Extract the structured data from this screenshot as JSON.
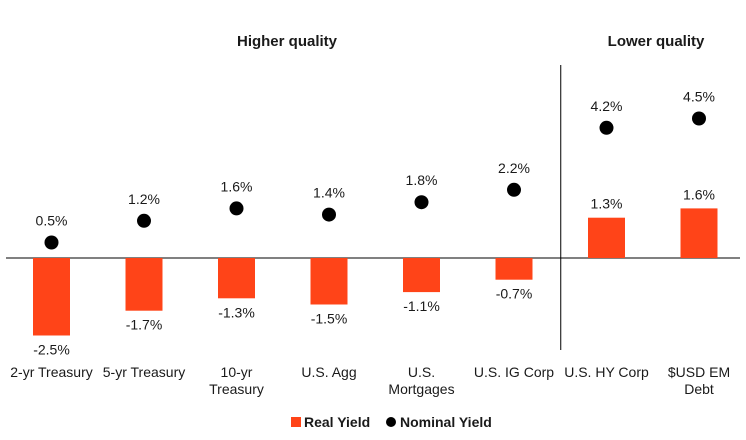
{
  "chart_data": {
    "type": "bar",
    "categories": [
      [
        "2-yr Treasury"
      ],
      [
        "5-yr Treasury"
      ],
      [
        "10-yr",
        "Treasury"
      ],
      [
        "U.S. Agg"
      ],
      [
        "U.S.",
        "Mortgages"
      ],
      [
        "U.S. IG Corp"
      ],
      [
        "U.S. HY Corp"
      ],
      [
        "$USD EM",
        "Debt"
      ]
    ],
    "series": [
      {
        "name": "Real Yield",
        "kind": "bar",
        "color": "#ff4418",
        "values": [
          -2.5,
          -1.7,
          -1.3,
          -1.5,
          -1.1,
          -0.7,
          1.3,
          1.6
        ],
        "labels": [
          "-2.5%",
          "-1.7%",
          "-1.3%",
          "-1.5%",
          "-1.1%",
          "-0.7%",
          "1.3%",
          "1.6%"
        ]
      },
      {
        "name": "Nominal Yield",
        "kind": "dot",
        "color": "#000000",
        "values": [
          0.5,
          1.2,
          1.6,
          1.4,
          1.8,
          2.2,
          4.2,
          4.5
        ],
        "labels": [
          "0.5%",
          "1.2%",
          "1.6%",
          "1.4%",
          "1.8%",
          "2.2%",
          "4.2%",
          "4.5%"
        ]
      }
    ],
    "groups": [
      {
        "title": "Higher quality",
        "categories": [
          0,
          5
        ]
      },
      {
        "title": "Lower quality",
        "categories": [
          6,
          7
        ]
      }
    ],
    "legend": {
      "position": "bottom-center",
      "items": [
        {
          "label": "Real Yield",
          "marker": "square",
          "color": "#ff4418"
        },
        {
          "label": "Nominal Yield",
          "marker": "circle",
          "color": "#000000"
        }
      ]
    },
    "ylim": [
      -2.8,
      5.3
    ],
    "grid": false
  }
}
